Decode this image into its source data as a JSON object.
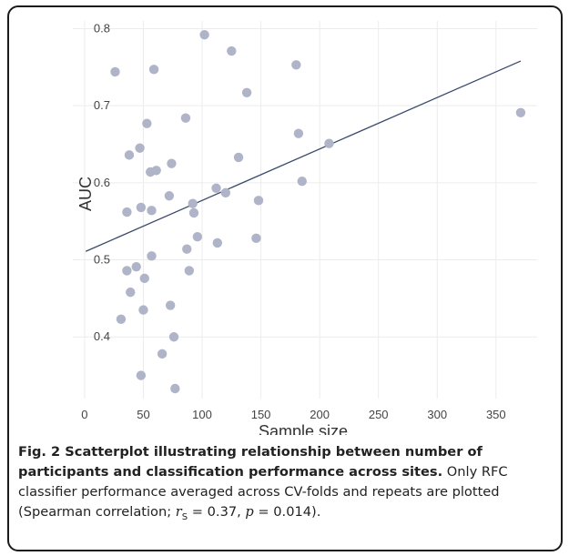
{
  "chart_data": {
    "type": "scatter",
    "xlabel": "Sample size",
    "ylabel": "AUC",
    "x_ticks": [
      "0",
      "50",
      "100",
      "150",
      "200",
      "250",
      "300",
      "350"
    ],
    "y_ticks": [
      "0.4",
      "0.5",
      "0.6",
      "0.7",
      "0.8"
    ],
    "xlim": [
      -10,
      385
    ],
    "ylim": [
      0.32,
      0.81
    ],
    "grid": true,
    "point_color": "#b0b4c8",
    "line_color": "#3a4a6b",
    "points": [
      {
        "x": 26,
        "y": 0.744
      },
      {
        "x": 102,
        "y": 0.792
      },
      {
        "x": 125,
        "y": 0.771
      },
      {
        "x": 59,
        "y": 0.747
      },
      {
        "x": 180,
        "y": 0.753
      },
      {
        "x": 371,
        "y": 0.691
      },
      {
        "x": 138,
        "y": 0.717
      },
      {
        "x": 53,
        "y": 0.677
      },
      {
        "x": 86,
        "y": 0.684
      },
      {
        "x": 182,
        "y": 0.664
      },
      {
        "x": 208,
        "y": 0.651
      },
      {
        "x": 47,
        "y": 0.645
      },
      {
        "x": 38,
        "y": 0.636
      },
      {
        "x": 131,
        "y": 0.633
      },
      {
        "x": 74,
        "y": 0.625
      },
      {
        "x": 61,
        "y": 0.616
      },
      {
        "x": 56,
        "y": 0.614
      },
      {
        "x": 185,
        "y": 0.602
      },
      {
        "x": 112,
        "y": 0.593
      },
      {
        "x": 120,
        "y": 0.587
      },
      {
        "x": 72,
        "y": 0.583
      },
      {
        "x": 148,
        "y": 0.577
      },
      {
        "x": 92,
        "y": 0.573
      },
      {
        "x": 48,
        "y": 0.568
      },
      {
        "x": 57,
        "y": 0.564
      },
      {
        "x": 36,
        "y": 0.562
      },
      {
        "x": 93,
        "y": 0.561
      },
      {
        "x": 96,
        "y": 0.53
      },
      {
        "x": 146,
        "y": 0.528
      },
      {
        "x": 113,
        "y": 0.522
      },
      {
        "x": 87,
        "y": 0.514
      },
      {
        "x": 57,
        "y": 0.505
      },
      {
        "x": 44,
        "y": 0.491
      },
      {
        "x": 89,
        "y": 0.486
      },
      {
        "x": 36,
        "y": 0.486
      },
      {
        "x": 51,
        "y": 0.476
      },
      {
        "x": 39,
        "y": 0.458
      },
      {
        "x": 73,
        "y": 0.441
      },
      {
        "x": 50,
        "y": 0.435
      },
      {
        "x": 31,
        "y": 0.423
      },
      {
        "x": 76,
        "y": 0.4
      },
      {
        "x": 66,
        "y": 0.378
      },
      {
        "x": 48,
        "y": 0.35
      },
      {
        "x": 77,
        "y": 0.333
      }
    ],
    "trend_line": {
      "x": [
        1,
        371
      ],
      "y": [
        0.511,
        0.758
      ]
    }
  },
  "caption": {
    "bold": "Fig. 2 Scatterplot illustrating relationship between number of participants and classification performance across sites.",
    "text": "Only RFC classifier performance averaged across CV-folds and repeats are plotted (Spearman correlation;",
    "r_symbol": "r",
    "r_sub": "S",
    "r_value": "= 0.37,",
    "p_symbol": "p",
    "p_value": "= 0.014)."
  }
}
